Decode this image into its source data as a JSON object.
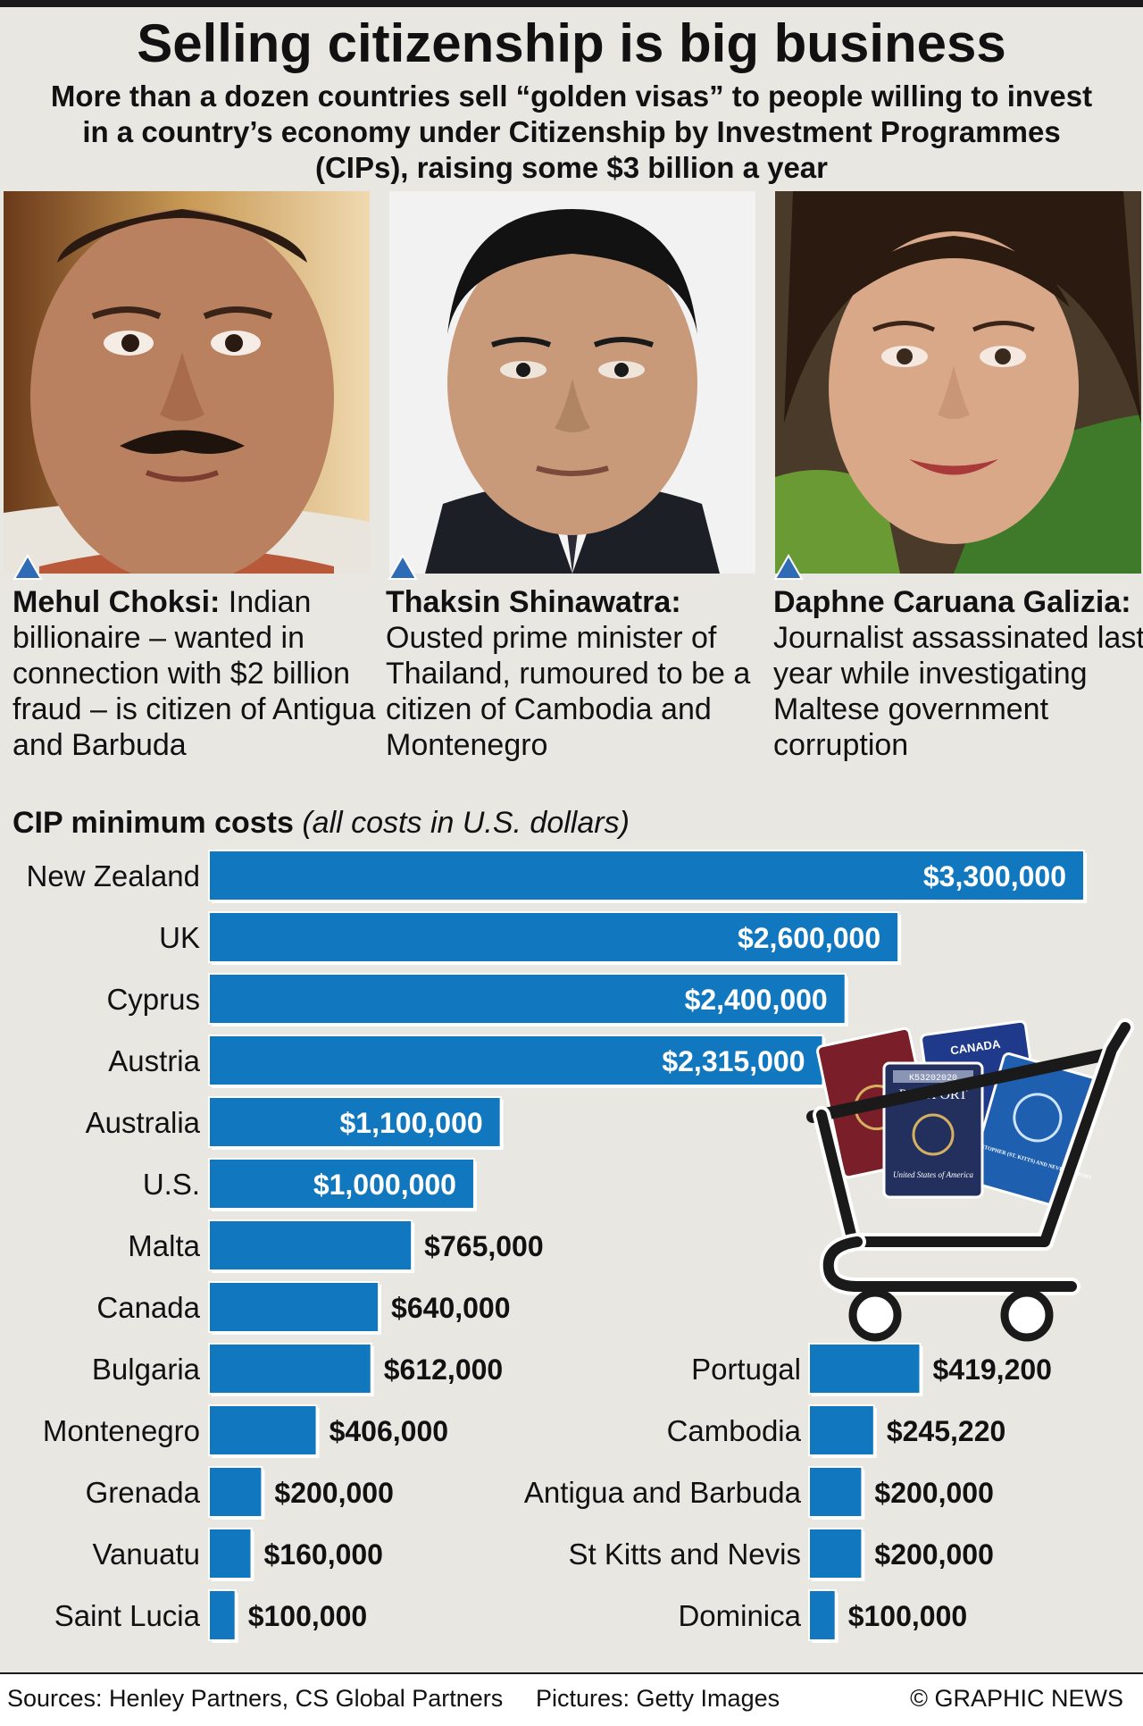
{
  "header": {
    "title": "Selling citizenship is big business",
    "subtitle": "More than a dozen countries sell “golden visas” to people willing to invest in a country’s economy under Citizenship by Investment Programmes (CIPs), raising some $3 billion a year"
  },
  "profiles": [
    {
      "name": "Mehul Choksi:",
      "text": " Indian billionaire – wanted in connection with $2 billion fraud – is citizen of Antigua and Barbuda"
    },
    {
      "name": "Thaksin Shinawatra:",
      "text": " Ousted prime minister of Thailand, rumoured to be a citizen of Cambodia and Montenegro"
    },
    {
      "name": "Daphne Caruana Galizia:",
      "text": " Journalist assassinated last year while investigating Maltese government corruption"
    }
  ],
  "chart_data": {
    "type": "bar",
    "orientation": "horizontal",
    "title": "CIP minimum costs",
    "title_note": "(all costs in U.S. dollars)",
    "categories": [
      "New Zealand",
      "UK",
      "Cyprus",
      "Austria",
      "Australia",
      "U.S.",
      "Malta",
      "Canada",
      "Bulgaria",
      "Montenegro",
      "Grenada",
      "Vanuatu",
      "Saint Lucia",
      "Portugal",
      "Cambodia",
      "Antigua and Barbuda",
      "St Kitts and Nevis",
      "Dominica"
    ],
    "values": [
      3300000,
      2600000,
      2400000,
      2315000,
      1100000,
      1000000,
      765000,
      640000,
      612000,
      406000,
      200000,
      160000,
      100000,
      419200,
      245220,
      200000,
      200000,
      100000
    ],
    "labels": [
      "$3,300,000",
      "$2,600,000",
      "$2,400,000",
      "$2,315,000",
      "$1,100,000",
      "$1,000,000",
      "$765,000",
      "$640,000",
      "$612,000",
      "$406,000",
      "$200,000",
      "$160,000",
      "$100,000",
      "$419,200",
      "$245,220",
      "$200,000",
      "$200,000",
      "$100,000"
    ],
    "bar_color": "#1178c0"
  },
  "passports": {
    "canada": "CANADA",
    "us_cover": "PASSPORT",
    "us_serial": "K53202020",
    "us_country": "United States of America",
    "stkitts": "ST. CHRISTOPHER (ST. KITTS) AND NEVIS PASSPORT"
  },
  "footer": {
    "sources": "Sources: Henley Partners, CS Global Partners",
    "pictures": "Pictures: Getty Images",
    "credit": "© GRAPHIC NEWS"
  }
}
